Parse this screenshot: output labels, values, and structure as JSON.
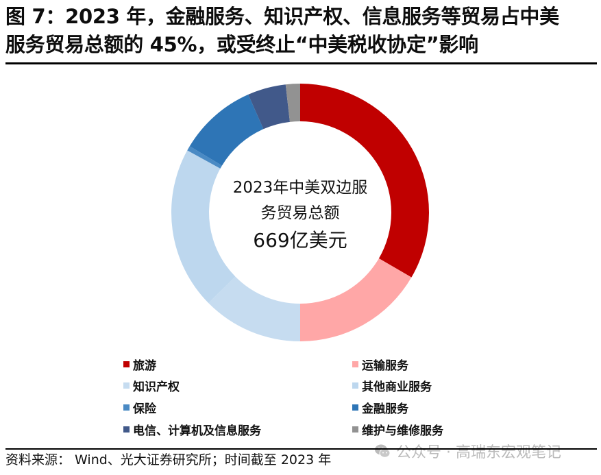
{
  "title": {
    "line1": "图 7：2023 年，金融服务、知识产权、信息服务等贸易占中美",
    "line2": "服务贸易总额的 45%，或受终止“中美税收协定”影响"
  },
  "center_label": {
    "line1": "2023年中美双边服",
    "line2": "务贸易总额",
    "line3": "669亿美元"
  },
  "legend": [
    {
      "label": "旅游",
      "color": "#C00000"
    },
    {
      "label": "运输服务",
      "color": "#FFA7A7"
    },
    {
      "label": "知识产权",
      "color": "#C6DCF0"
    },
    {
      "label": "其他商业服务",
      "color": "#BDD7EE"
    },
    {
      "label": "保险",
      "color": "#4A8AC4"
    },
    {
      "label": "金融服务",
      "color": "#2E75B6"
    },
    {
      "label": "电信、计算机及信息服务",
      "color": "#41598A"
    },
    {
      "label": "维护与维修服务",
      "color": "#929292"
    }
  ],
  "footer": {
    "source": "资料来源： Wind、光大证券研究所；时间截至 2023 年",
    "watermark": "公众号 · 高瑞东宏观笔记"
  },
  "chart_data": {
    "type": "pie",
    "subtype": "donut",
    "title": "2023年中美双边服务贸易总额 669亿美元",
    "total": 669,
    "unit": "亿美元",
    "start_angle_deg": 0,
    "direction": "clockwise",
    "categories": [
      "旅游",
      "运输服务",
      "知识产权",
      "其他商业服务",
      "保险",
      "金融服务",
      "电信、计算机及信息服务",
      "维护与维修服务"
    ],
    "values": [
      33.4,
      16.6,
      12.6,
      20.4,
      0.6,
      9.8,
      4.8,
      1.8
    ],
    "value_unit": "% of total (estimated from arc angles)",
    "colors": [
      "#C00000",
      "#FFA7A7",
      "#C6DCF0",
      "#BDD7EE",
      "#4A8AC4",
      "#2E75B6",
      "#41598A",
      "#929292"
    ],
    "legend_position": "bottom",
    "data_labels": false
  }
}
